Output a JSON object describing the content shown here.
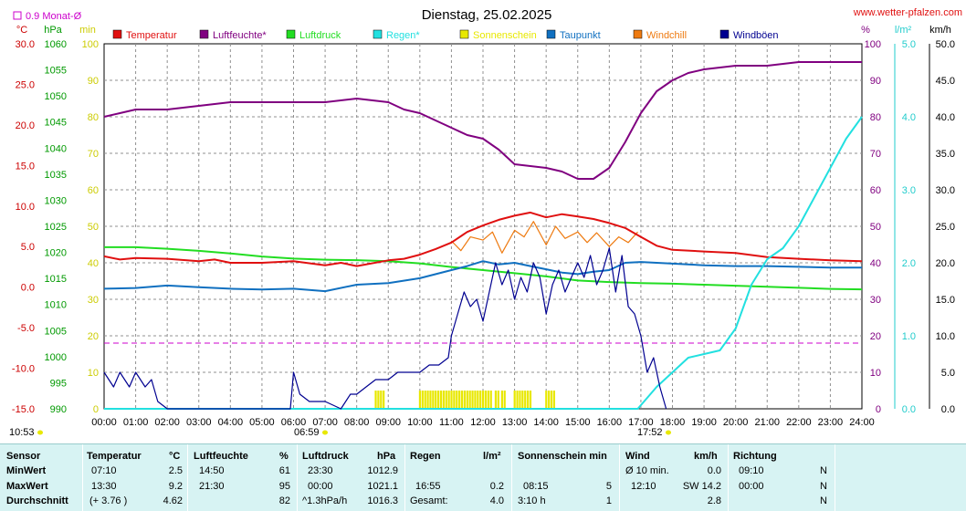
{
  "title": "Dienstag, 25.02.2025",
  "site": "www.wetter-pfalzen.com",
  "rain_avg_label": "0.9 Monat-Ø",
  "units": {
    "c": "°C",
    "hpa": "hPa",
    "min": "min",
    "pct": "%",
    "lm2": "l/m²",
    "kmh": "km/h"
  },
  "sunrise": "06:59",
  "sunset": "17:52",
  "sunshine_total_label": "10:53",
  "legend": [
    {
      "name": "Temperatur",
      "color": "#e01010"
    },
    {
      "name": "Luftfeuchte*",
      "color": "#800080"
    },
    {
      "name": "Luftdruck",
      "color": "#22dd22"
    },
    {
      "name": "Regen*",
      "color": "#22e0e0"
    },
    {
      "name": "Sonnenschein",
      "color": "#e8e800"
    },
    {
      "name": "Taupunkt",
      "color": "#1070c0"
    },
    {
      "name": "Windchill",
      "color": "#ee7a10"
    },
    {
      "name": "Windböen",
      "color": "#000090"
    }
  ],
  "axis_ticks": {
    "temp": [
      "30.0",
      "25.0",
      "20.0",
      "15.0",
      "10.0",
      "5.0",
      "0.0",
      "-5.0",
      "-10.0",
      "-15.0"
    ],
    "pressure": [
      "1060",
      "1055",
      "1050",
      "1045",
      "1040",
      "1035",
      "1030",
      "1025",
      "1020",
      "1015",
      "1010",
      "1005",
      "1000",
      "995",
      "990"
    ],
    "minutes": [
      "100",
      "90",
      "80",
      "70",
      "60",
      "50",
      "40",
      "30",
      "20",
      "10",
      "0"
    ],
    "humidity": [
      "100",
      "90",
      "80",
      "70",
      "60",
      "50",
      "40",
      "30",
      "20",
      "10",
      "0"
    ],
    "rain": [
      "5.0",
      "4.0",
      "3.0",
      "2.0",
      "1.0",
      "0.0"
    ],
    "wind": [
      "50.0",
      "45.0",
      "40.0",
      "35.0",
      "30.0",
      "25.0",
      "20.0",
      "15.0",
      "10.0",
      "5.0",
      "0.0"
    ],
    "x": [
      "00:00",
      "01:00",
      "02:00",
      "03:00",
      "04:00",
      "05:00",
      "06:00",
      "07:00",
      "08:00",
      "09:00",
      "10:00",
      "11:00",
      "12:00",
      "13:00",
      "14:00",
      "15:00",
      "16:00",
      "17:00",
      "18:00",
      "19:00",
      "20:00",
      "21:00",
      "22:00",
      "23:00",
      "24:00"
    ]
  },
  "chart_data": {
    "type": "line",
    "title": "Dienstag, 25.02.2025",
    "x_unit": "hour",
    "xlim": [
      0,
      24
    ],
    "grid": true,
    "legend_position": "top",
    "axes": {
      "temp": {
        "label": "°C",
        "ylim": [
          -15,
          30
        ]
      },
      "pressure": {
        "label": "hPa",
        "ylim": [
          990,
          1060
        ]
      },
      "minutes": {
        "label": "min",
        "ylim": [
          0,
          100
        ]
      },
      "humidity": {
        "label": "%",
        "ylim": [
          0,
          100
        ]
      },
      "rain": {
        "label": "l/m²",
        "ylim": [
          0,
          5
        ]
      },
      "wind": {
        "label": "km/h",
        "ylim": [
          0,
          50
        ]
      }
    },
    "reference_line": {
      "axis": "rain",
      "value": 0.9,
      "label": "0.9 Monat-Ø"
    },
    "series": [
      {
        "name": "Temperatur",
        "axis": "temp",
        "color": "#e01010",
        "points": [
          [
            0,
            3.8
          ],
          [
            0.5,
            3.4
          ],
          [
            1,
            3.6
          ],
          [
            2,
            3.5
          ],
          [
            3,
            3.2
          ],
          [
            3.5,
            3.4
          ],
          [
            4,
            3.0
          ],
          [
            5,
            3.0
          ],
          [
            6,
            3.2
          ],
          [
            7,
            2.7
          ],
          [
            7.5,
            3.0
          ],
          [
            8,
            2.6
          ],
          [
            9,
            3.3
          ],
          [
            9.5,
            3.5
          ],
          [
            10,
            4.0
          ],
          [
            10.5,
            4.7
          ],
          [
            11,
            5.5
          ],
          [
            11.5,
            6.8
          ],
          [
            12,
            7.6
          ],
          [
            12.5,
            8.3
          ],
          [
            13,
            8.8
          ],
          [
            13.5,
            9.2
          ],
          [
            14,
            8.6
          ],
          [
            14.5,
            9.0
          ],
          [
            15,
            8.7
          ],
          [
            15.5,
            8.4
          ],
          [
            16,
            7.9
          ],
          [
            16.5,
            7.3
          ],
          [
            17,
            6.2
          ],
          [
            17.5,
            5.1
          ],
          [
            18,
            4.6
          ],
          [
            19,
            4.4
          ],
          [
            20,
            4.2
          ],
          [
            21,
            3.7
          ],
          [
            22,
            3.5
          ],
          [
            23,
            3.3
          ],
          [
            24,
            3.2
          ]
        ]
      },
      {
        "name": "Luftfeuchte*",
        "axis": "humidity",
        "color": "#800080",
        "points": [
          [
            0,
            80
          ],
          [
            0.5,
            81
          ],
          [
            1,
            82
          ],
          [
            2,
            82
          ],
          [
            3,
            83
          ],
          [
            4,
            84
          ],
          [
            5,
            84
          ],
          [
            6,
            84
          ],
          [
            7,
            84
          ],
          [
            8,
            85
          ],
          [
            9,
            84
          ],
          [
            9.5,
            82
          ],
          [
            10,
            81
          ],
          [
            10.5,
            79
          ],
          [
            11,
            77
          ],
          [
            11.5,
            75
          ],
          [
            12,
            74
          ],
          [
            12.5,
            71
          ],
          [
            13,
            67
          ],
          [
            14,
            66
          ],
          [
            14.5,
            65
          ],
          [
            15,
            63
          ],
          [
            15.5,
            63
          ],
          [
            16,
            66
          ],
          [
            16.5,
            73
          ],
          [
            17,
            81
          ],
          [
            17.5,
            87
          ],
          [
            18,
            90
          ],
          [
            18.5,
            92
          ],
          [
            19,
            93
          ],
          [
            20,
            94
          ],
          [
            21,
            94
          ],
          [
            22,
            95
          ],
          [
            23,
            95
          ],
          [
            24,
            95
          ]
        ]
      },
      {
        "name": "Luftdruck",
        "axis": "pressure",
        "color": "#22dd22",
        "points": [
          [
            0,
            1021.0
          ],
          [
            1,
            1021.0
          ],
          [
            2,
            1020.7
          ],
          [
            3,
            1020.3
          ],
          [
            4,
            1019.8
          ],
          [
            5,
            1019.2
          ],
          [
            6,
            1018.8
          ],
          [
            7,
            1018.6
          ],
          [
            8,
            1018.5
          ],
          [
            9,
            1018.3
          ],
          [
            10,
            1017.9
          ],
          [
            11,
            1017.2
          ],
          [
            12,
            1016.6
          ],
          [
            13,
            1016.0
          ],
          [
            14,
            1015.4
          ],
          [
            15,
            1014.6
          ],
          [
            16,
            1014.3
          ],
          [
            17,
            1014.1
          ],
          [
            18,
            1014.0
          ],
          [
            19,
            1013.8
          ],
          [
            20,
            1013.6
          ],
          [
            21,
            1013.4
          ],
          [
            22,
            1013.2
          ],
          [
            23,
            1013.0
          ],
          [
            24,
            1012.9
          ]
        ]
      },
      {
        "name": "Regen*",
        "axis": "rain",
        "color": "#22e0e0",
        "points": [
          [
            0,
            0
          ],
          [
            16.9,
            0
          ],
          [
            17.1,
            0.1
          ],
          [
            17.5,
            0.3
          ],
          [
            18,
            0.5
          ],
          [
            18.5,
            0.7
          ],
          [
            19,
            0.75
          ],
          [
            19.5,
            0.8
          ],
          [
            20,
            1.1
          ],
          [
            20.5,
            1.7
          ],
          [
            21,
            2.05
          ],
          [
            21.5,
            2.2
          ],
          [
            22,
            2.5
          ],
          [
            22.5,
            2.9
          ],
          [
            23,
            3.3
          ],
          [
            23.5,
            3.7
          ],
          [
            24,
            4.0
          ]
        ]
      },
      {
        "name": "Taupunkt",
        "axis": "temp",
        "color": "#1070c0",
        "points": [
          [
            0,
            -0.2
          ],
          [
            1,
            -0.1
          ],
          [
            2,
            0.2
          ],
          [
            3,
            0.0
          ],
          [
            4,
            -0.2
          ],
          [
            5,
            -0.3
          ],
          [
            6,
            -0.2
          ],
          [
            7,
            -0.5
          ],
          [
            8,
            0.3
          ],
          [
            9,
            0.5
          ],
          [
            10,
            1.1
          ],
          [
            11,
            2.1
          ],
          [
            11.5,
            2.6
          ],
          [
            12,
            3.2
          ],
          [
            12.5,
            2.8
          ],
          [
            13,
            3.0
          ],
          [
            13.5,
            2.6
          ],
          [
            14,
            2.2
          ],
          [
            14.5,
            1.8
          ],
          [
            15,
            1.6
          ],
          [
            15.5,
            1.9
          ],
          [
            16,
            2.1
          ],
          [
            16.5,
            3.0
          ],
          [
            17,
            3.1
          ],
          [
            18,
            2.9
          ],
          [
            19,
            2.7
          ],
          [
            20,
            2.6
          ],
          [
            21,
            2.6
          ],
          [
            22,
            2.5
          ],
          [
            23,
            2.4
          ],
          [
            24,
            2.4
          ]
        ]
      },
      {
        "name": "Windchill",
        "axis": "temp",
        "color": "#ee7a10",
        "points": [
          [
            11,
            5.7
          ],
          [
            11.3,
            4.5
          ],
          [
            11.6,
            6.2
          ],
          [
            12,
            5.8
          ],
          [
            12.3,
            6.8
          ],
          [
            12.6,
            4.2
          ],
          [
            13,
            7.0
          ],
          [
            13.3,
            6.2
          ],
          [
            13.6,
            8.1
          ],
          [
            14,
            5.2
          ],
          [
            14.3,
            7.5
          ],
          [
            14.6,
            6.0
          ],
          [
            15,
            6.8
          ],
          [
            15.3,
            5.5
          ],
          [
            15.6,
            6.7
          ],
          [
            16,
            5.0
          ],
          [
            16.3,
            6.2
          ],
          [
            16.6,
            5.5
          ],
          [
            16.9,
            6.8
          ]
        ]
      },
      {
        "name": "Windböen",
        "axis": "wind",
        "color": "#000090",
        "points": [
          [
            0,
            5
          ],
          [
            0.3,
            3
          ],
          [
            0.5,
            5
          ],
          [
            0.8,
            3
          ],
          [
            1,
            5
          ],
          [
            1.3,
            3
          ],
          [
            1.5,
            4
          ],
          [
            1.7,
            1
          ],
          [
            2,
            0
          ],
          [
            5.9,
            0
          ],
          [
            6,
            5
          ],
          [
            6.2,
            2
          ],
          [
            6.5,
            1
          ],
          [
            7,
            1
          ],
          [
            7.5,
            0
          ],
          [
            7.8,
            2
          ],
          [
            8,
            2
          ],
          [
            8.3,
            3
          ],
          [
            8.6,
            4
          ],
          [
            9,
            4
          ],
          [
            9.3,
            5
          ],
          [
            9.6,
            5
          ],
          [
            10,
            5
          ],
          [
            10.3,
            6
          ],
          [
            10.6,
            6
          ],
          [
            10.9,
            7
          ],
          [
            11,
            10
          ],
          [
            11.2,
            13
          ],
          [
            11.4,
            16
          ],
          [
            11.6,
            14
          ],
          [
            11.8,
            15
          ],
          [
            12,
            12
          ],
          [
            12.2,
            16
          ],
          [
            12.4,
            20
          ],
          [
            12.6,
            17
          ],
          [
            12.8,
            19
          ],
          [
            13,
            15
          ],
          [
            13.2,
            18
          ],
          [
            13.4,
            16
          ],
          [
            13.6,
            20
          ],
          [
            13.8,
            18
          ],
          [
            14,
            13
          ],
          [
            14.2,
            17
          ],
          [
            14.4,
            19
          ],
          [
            14.6,
            16
          ],
          [
            14.8,
            18
          ],
          [
            15,
            20
          ],
          [
            15.2,
            18
          ],
          [
            15.4,
            21
          ],
          [
            15.6,
            17
          ],
          [
            15.8,
            19
          ],
          [
            16,
            22
          ],
          [
            16.2,
            16
          ],
          [
            16.4,
            21
          ],
          [
            16.6,
            14
          ],
          [
            16.8,
            13
          ],
          [
            17,
            10
          ],
          [
            17.2,
            5
          ],
          [
            17.4,
            7
          ],
          [
            17.6,
            3
          ],
          [
            17.8,
            0
          ]
        ]
      }
    ],
    "sunshine": {
      "axis": "minutes",
      "color": "#e8e800",
      "intervals": [
        [
          8.6,
          8.9
        ],
        [
          10.0,
          12.3
        ],
        [
          12.4,
          12.5
        ],
        [
          12.6,
          12.7
        ],
        [
          13.0,
          13.5
        ],
        [
          14.0,
          14.25
        ]
      ]
    }
  },
  "table": {
    "row_labels": [
      "Sensor",
      "MinWert",
      "MaxWert",
      "Durchschnitt"
    ],
    "temp": {
      "header": "Temperatur",
      "unit": "°C",
      "rows": [
        [
          "07:10",
          "2.5"
        ],
        [
          "13:30",
          "9.2"
        ],
        [
          "(+ 3.76 )",
          "4.62"
        ]
      ]
    },
    "hum": {
      "header": "Luftfeuchte",
      "unit": "%",
      "rows": [
        [
          "14:50",
          "61"
        ],
        [
          "21:30",
          "95"
        ],
        [
          "",
          "82"
        ]
      ]
    },
    "press": {
      "header": "Luftdruck",
      "unit": "hPa",
      "rows": [
        [
          "23:30",
          "1012.9"
        ],
        [
          "00:00",
          "1021.1"
        ],
        [
          "^1.3hPa/h",
          "1016.3"
        ]
      ]
    },
    "rain": {
      "header": "Regen",
      "unit": "l/m²",
      "rows": [
        [
          "",
          ""
        ],
        [
          "16:55",
          "0.2"
        ],
        [
          "Gesamt:",
          "4.0"
        ]
      ]
    },
    "sun": {
      "header": "Sonnenschein min",
      "unit": "",
      "rows": [
        [
          "",
          ""
        ],
        [
          "08:15",
          "5"
        ],
        [
          "3:10 h",
          "1"
        ]
      ]
    },
    "wind": {
      "header": "Wind",
      "unit": "km/h",
      "rows": [
        [
          "Ø 10 min.",
          "0.0"
        ],
        [
          "12:10",
          "SW 14.2"
        ],
        [
          "",
          "2.8"
        ]
      ]
    },
    "dir": {
      "header": "Richtung",
      "rows": [
        [
          "09:10",
          "N"
        ],
        [
          "00:00",
          "N"
        ],
        [
          "",
          "N"
        ]
      ]
    }
  }
}
